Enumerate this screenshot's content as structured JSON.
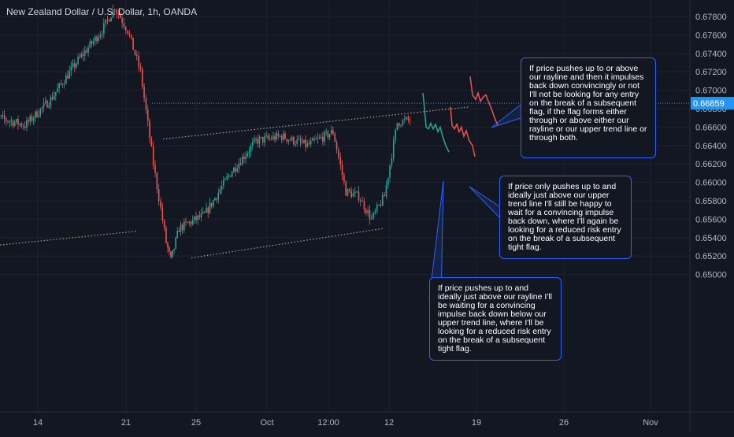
{
  "chart_title": "New Zealand Dollar / U.S. Dollar, 1h, OANDA",
  "chart_data": {
    "type": "candlestick",
    "symbol": "NZDUSD",
    "timeframe": "1h",
    "broker": "OANDA",
    "y_ticks": [
      "0.67800",
      "0.67600",
      "0.67400",
      "0.67200",
      "0.67000",
      "0.66800",
      "0.66600",
      "0.66400",
      "0.66200",
      "0.66000",
      "0.65800",
      "0.65600",
      "0.65400",
      "0.65200",
      "0.65000"
    ],
    "ylim": [
      0.649,
      0.679
    ],
    "current_price_label": "0.66859",
    "x_ticks": [
      "14",
      "21",
      "25",
      "Oct",
      "12:00",
      "12",
      "19",
      "26",
      "Nov"
    ],
    "price_path": [
      {
        "x": "Sep 10",
        "y": 0.6685
      },
      {
        "x": "Sep 11",
        "y": 0.667
      },
      {
        "x": "Sep 13",
        "y": 0.6662
      },
      {
        "x": "Sep 15",
        "y": 0.669
      },
      {
        "x": "Sep 17",
        "y": 0.673
      },
      {
        "x": "Sep 19",
        "y": 0.6765
      },
      {
        "x": "Sep 20",
        "y": 0.679
      },
      {
        "x": "Sep 21",
        "y": 0.6765
      },
      {
        "x": "Sep 22",
        "y": 0.672
      },
      {
        "x": "Sep 23",
        "y": 0.662
      },
      {
        "x": "Sep 24",
        "y": 0.6535
      },
      {
        "x": "Sep 24",
        "y": 0.6515
      },
      {
        "x": "Sep 25",
        "y": 0.655
      },
      {
        "x": "Sep 27",
        "y": 0.6565
      },
      {
        "x": "Sep 29",
        "y": 0.661
      },
      {
        "x": "Oct 1",
        "y": 0.6645
      },
      {
        "x": "Oct 3",
        "y": 0.665
      },
      {
        "x": "Oct 5",
        "y": 0.664
      },
      {
        "x": "Oct 7",
        "y": 0.6655
      },
      {
        "x": "Oct 8",
        "y": 0.659
      },
      {
        "x": "Oct 9",
        "y": 0.6585
      },
      {
        "x": "Oct 10",
        "y": 0.656
      },
      {
        "x": "Oct 11",
        "y": 0.6585
      },
      {
        "x": "Oct 12",
        "y": 0.6665
      },
      {
        "x": "Oct 13",
        "y": 0.6668
      }
    ],
    "colors": {
      "up": "#26a69a",
      "down": "#ef5350",
      "background": "#131722",
      "grid": "#1e222d",
      "current_price": "#2196f3",
      "trendline": "#b39a8a",
      "note_border": "#2962ff"
    }
  },
  "notes": [
    {
      "text": "If price pushes up to or above our rayline and then it impulses back down convincingly or not I'll not be looking for any entry on the break of a subsequent flag, if the flag forms either through or above either our rayline or our upper trend line or through both."
    },
    {
      "text": "If price only pushes up to and ideally just above our upper trend line I'll still be happy to wait for a convincing impulse back down, where I'll again be looking for a reduced risk entry on the break of a subsequent tight flag."
    },
    {
      "text": "If price pushes up to and ideally just above our rayline I'll be waiting for a convincing impulse back down below our upper trend line, where I'll be looking for a reduced risk entry on the break of a subsequent tight flag."
    }
  ]
}
